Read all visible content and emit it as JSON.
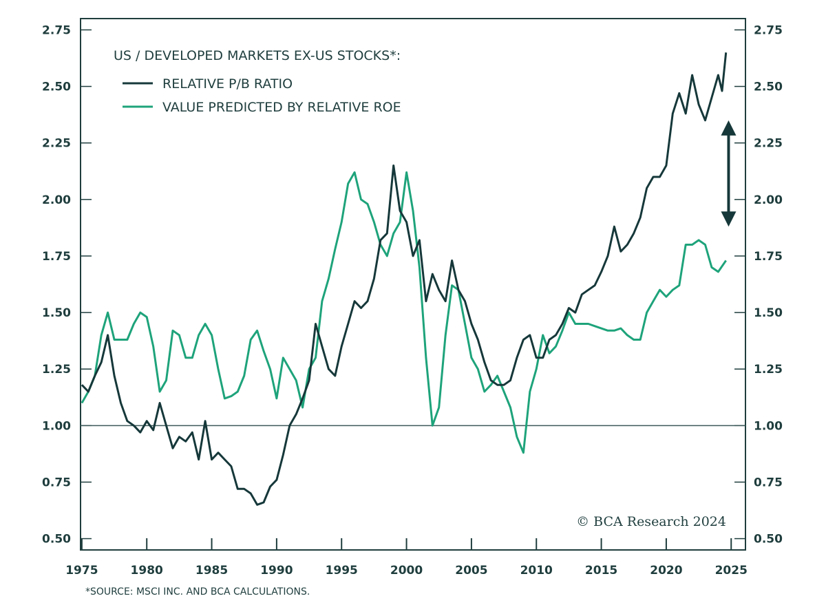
{
  "chart_data": {
    "type": "line",
    "title": "US / DEVELOPED MARKETS EX-US STOCKS*:",
    "source": "*SOURCE: MSCI INC. AND BCA CALCULATIONS.",
    "copyright": "© BCA Research 2024",
    "xlim": [
      1974.9,
      2026.1
    ],
    "ylim": [
      0.45,
      2.8
    ],
    "x_ticks": [
      1975,
      1980,
      1985,
      1990,
      1995,
      2000,
      2005,
      2010,
      2015,
      2020,
      2025
    ],
    "x_tick_labels": [
      "1975",
      "1980",
      "1985",
      "1990",
      "1995",
      "2000",
      "2005",
      "2010",
      "2015",
      "2020",
      "2025"
    ],
    "y_ticks": [
      0.5,
      0.75,
      1.0,
      1.25,
      1.5,
      1.75,
      2.0,
      2.25,
      2.5,
      2.75
    ],
    "y_tick_labels": [
      "0.50",
      "0.75",
      "1.00",
      "1.25",
      "1.50",
      "1.75",
      "2.00",
      "2.25",
      "2.50",
      "2.75"
    ],
    "reference_line": 1.0,
    "grid": false,
    "legend_placement": "top-left",
    "annotation_arrow": {
      "x": 2024.8,
      "y_from": 1.88,
      "y_to": 2.35
    },
    "series": [
      {
        "name": "RELATIVE P/B RATIO",
        "color": "#16383a",
        "x": [
          1975,
          1975.5,
          1976,
          1976.5,
          1977,
          1977.5,
          1978,
          1978.5,
          1979,
          1979.5,
          1980,
          1980.5,
          1981,
          1981.5,
          1982,
          1982.5,
          1983,
          1983.5,
          1984,
          1984.5,
          1985,
          1985.5,
          1986,
          1986.5,
          1987,
          1987.5,
          1988,
          1988.5,
          1989,
          1989.5,
          1990,
          1990.5,
          1991,
          1991.5,
          1992,
          1992.5,
          1993,
          1993.5,
          1994,
          1994.5,
          1995,
          1995.5,
          1996,
          1996.5,
          1997,
          1997.5,
          1998,
          1998.5,
          1999,
          1999.5,
          2000,
          2000.5,
          2001,
          2001.5,
          2002,
          2002.5,
          2003,
          2003.5,
          2004,
          2004.5,
          2005,
          2005.5,
          2006,
          2006.5,
          2007,
          2007.5,
          2008,
          2008.5,
          2009,
          2009.5,
          2010,
          2010.5,
          2011,
          2011.5,
          2012,
          2012.5,
          2013,
          2013.5,
          2014,
          2014.5,
          2015,
          2015.5,
          2016,
          2016.5,
          2017,
          2017.5,
          2018,
          2018.5,
          2019,
          2019.5,
          2020,
          2020.5,
          2021,
          2021.5,
          2022,
          2022.5,
          2023,
          2023.5,
          2024,
          2024.3,
          2024.6
        ],
        "values": [
          1.18,
          1.15,
          1.22,
          1.28,
          1.4,
          1.22,
          1.1,
          1.02,
          1.0,
          0.97,
          1.02,
          0.98,
          1.1,
          1.0,
          0.9,
          0.95,
          0.93,
          0.97,
          0.85,
          1.02,
          0.85,
          0.88,
          0.85,
          0.82,
          0.72,
          0.72,
          0.7,
          0.65,
          0.66,
          0.73,
          0.76,
          0.87,
          1.0,
          1.05,
          1.12,
          1.2,
          1.45,
          1.35,
          1.25,
          1.22,
          1.35,
          1.45,
          1.55,
          1.52,
          1.55,
          1.65,
          1.82,
          1.85,
          2.15,
          1.95,
          1.9,
          1.75,
          1.82,
          1.55,
          1.67,
          1.6,
          1.55,
          1.73,
          1.6,
          1.55,
          1.45,
          1.38,
          1.28,
          1.2,
          1.18,
          1.18,
          1.2,
          1.3,
          1.38,
          1.4,
          1.3,
          1.3,
          1.38,
          1.4,
          1.45,
          1.52,
          1.5,
          1.58,
          1.6,
          1.62,
          1.68,
          1.75,
          1.88,
          1.77,
          1.8,
          1.85,
          1.92,
          2.05,
          2.1,
          2.1,
          2.15,
          2.38,
          2.47,
          2.38,
          2.55,
          2.42,
          2.35,
          2.45,
          2.55,
          2.48,
          2.65
        ]
      },
      {
        "name": "VALUE PREDICTED BY RELATIVE ROE",
        "color": "#1ea37a",
        "x": [
          1975,
          1975.5,
          1976,
          1976.5,
          1977,
          1977.5,
          1978,
          1978.5,
          1979,
          1979.5,
          1980,
          1980.5,
          1981,
          1981.5,
          1982,
          1982.5,
          1983,
          1983.5,
          1984,
          1984.5,
          1985,
          1985.5,
          1986,
          1986.5,
          1987,
          1987.5,
          1988,
          1988.5,
          1989,
          1989.5,
          1990,
          1990.5,
          1991,
          1991.5,
          1992,
          1992.5,
          1993,
          1993.5,
          1994,
          1994.5,
          1995,
          1995.5,
          1996,
          1996.5,
          1997,
          1997.5,
          1998,
          1998.5,
          1999,
          1999.5,
          2000,
          2000.5,
          2001,
          2001.5,
          2002,
          2002.5,
          2003,
          2003.5,
          2004,
          2004.5,
          2005,
          2005.5,
          2006,
          2006.5,
          2007,
          2007.5,
          2008,
          2008.5,
          2009,
          2009.5,
          2010,
          2010.5,
          2011,
          2011.5,
          2012,
          2012.5,
          2013,
          2013.5,
          2014,
          2014.5,
          2015,
          2015.5,
          2016,
          2016.5,
          2017,
          2017.5,
          2018,
          2018.5,
          2019,
          2019.5,
          2020,
          2020.5,
          2021,
          2021.5,
          2022,
          2022.5,
          2023,
          2023.5,
          2024,
          2024.6
        ],
        "values": [
          1.1,
          1.15,
          1.22,
          1.4,
          1.5,
          1.38,
          1.38,
          1.38,
          1.45,
          1.5,
          1.48,
          1.35,
          1.15,
          1.2,
          1.42,
          1.4,
          1.3,
          1.3,
          1.4,
          1.45,
          1.4,
          1.25,
          1.12,
          1.13,
          1.15,
          1.22,
          1.38,
          1.42,
          1.33,
          1.25,
          1.12,
          1.3,
          1.25,
          1.2,
          1.08,
          1.25,
          1.3,
          1.55,
          1.65,
          1.78,
          1.9,
          2.07,
          2.12,
          2.0,
          1.98,
          1.9,
          1.8,
          1.75,
          1.85,
          1.9,
          2.12,
          1.95,
          1.7,
          1.3,
          1.0,
          1.08,
          1.4,
          1.62,
          1.6,
          1.45,
          1.3,
          1.25,
          1.15,
          1.18,
          1.22,
          1.15,
          1.08,
          0.95,
          0.88,
          1.15,
          1.25,
          1.4,
          1.32,
          1.35,
          1.42,
          1.5,
          1.45,
          1.45,
          1.45,
          1.44,
          1.43,
          1.42,
          1.42,
          1.43,
          1.4,
          1.38,
          1.38,
          1.5,
          1.55,
          1.6,
          1.57,
          1.6,
          1.62,
          1.8,
          1.8,
          1.82,
          1.8,
          1.7,
          1.68,
          1.73
        ]
      }
    ]
  }
}
